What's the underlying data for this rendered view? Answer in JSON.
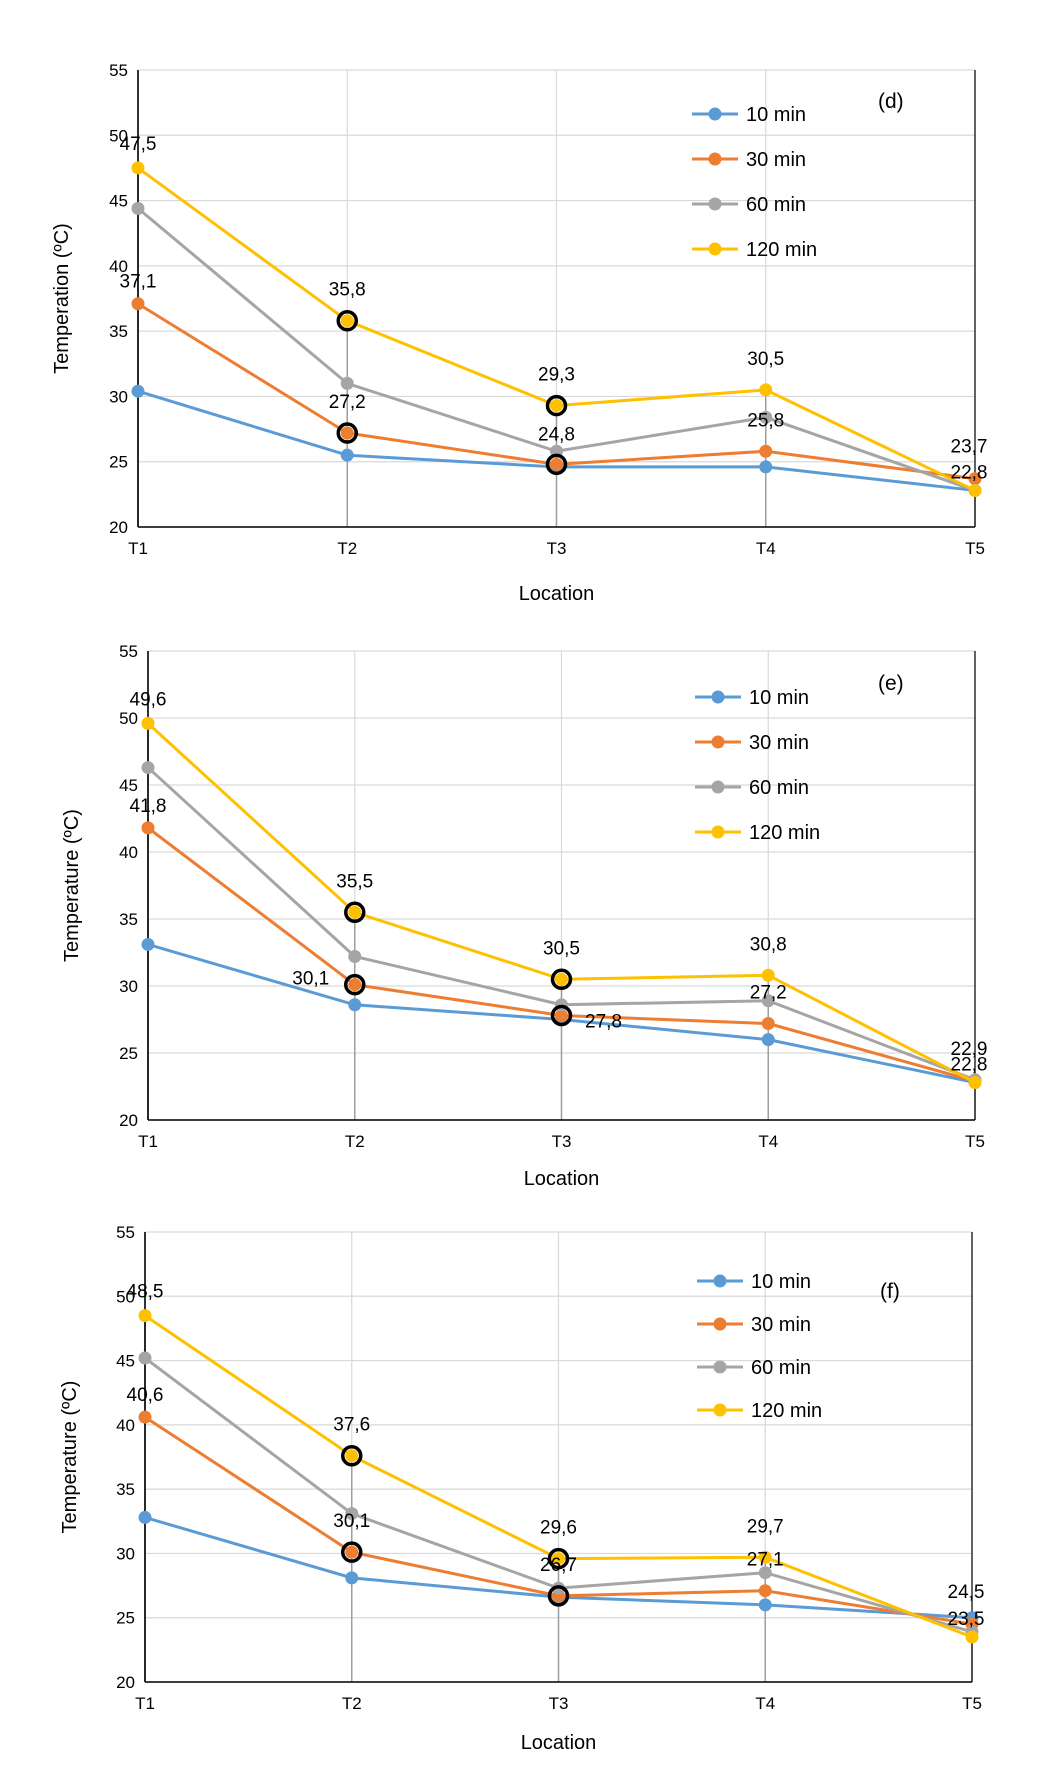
{
  "chart_data": [
    {
      "type": "line",
      "panel_label": "(d)",
      "xlabel": "Location",
      "ylabel": "Temperation (ºC)",
      "categories": [
        "T1",
        "T2",
        "T3",
        "T4",
        "T5"
      ],
      "ylim": [
        20,
        55
      ],
      "yticks": [
        "20",
        "25",
        "30",
        "35",
        "40",
        "45",
        "50",
        "55"
      ],
      "grid": true,
      "legend_position": "top-right",
      "series": [
        {
          "name": "10 min",
          "color": "#5b9bd5",
          "values": [
            30.4,
            25.5,
            24.6,
            24.6,
            22.8
          ]
        },
        {
          "name": "30 min",
          "color": "#ed7d31",
          "values": [
            37.1,
            27.2,
            24.8,
            25.8,
            23.7
          ]
        },
        {
          "name": "60 min",
          "color": "#a5a5a5",
          "values": [
            44.4,
            31.0,
            25.8,
            28.4,
            22.8
          ]
        },
        {
          "name": "120 min",
          "color": "#ffc000",
          "values": [
            47.5,
            35.8,
            29.3,
            30.5,
            22.8
          ]
        }
      ],
      "data_labels": [
        {
          "text": "47,5",
          "x": "T1",
          "y": 47.5
        },
        {
          "text": "37,1",
          "x": "T1",
          "y": 37.1
        },
        {
          "text": "35,8",
          "x": "T2",
          "y": 35.8
        },
        {
          "text": "27,2",
          "x": "T2",
          "y": 27.2
        },
        {
          "text": "29,3",
          "x": "T3",
          "y": 29.3
        },
        {
          "text": "24,8",
          "x": "T3",
          "y": 24.8
        },
        {
          "text": "30,5",
          "x": "T4",
          "y": 30.5
        },
        {
          "text": "25,8",
          "x": "T4",
          "y": 25.8
        },
        {
          "text": "23,7",
          "x": "T5",
          "y": 23.7
        },
        {
          "text": "22,8",
          "x": "T5",
          "y": 22.8
        }
      ],
      "highlighted_points": [
        {
          "x": "T2",
          "y": 35.8
        },
        {
          "x": "T3",
          "y": 29.3
        },
        {
          "x": "T2",
          "y": 27.2
        },
        {
          "x": "T3",
          "y": 24.8
        }
      ]
    },
    {
      "type": "line",
      "panel_label": "(e)",
      "xlabel": "Location",
      "ylabel": "Temperature (ºC)",
      "categories": [
        "T1",
        "T2",
        "T3",
        "T4",
        "T5"
      ],
      "ylim": [
        20,
        55
      ],
      "yticks": [
        "20",
        "25",
        "30",
        "35",
        "40",
        "45",
        "50",
        "55"
      ],
      "grid": true,
      "legend_position": "top-right",
      "series": [
        {
          "name": "10 min",
          "color": "#5b9bd5",
          "values": [
            33.1,
            28.6,
            27.5,
            26.0,
            22.8
          ]
        },
        {
          "name": "30 min",
          "color": "#ed7d31",
          "values": [
            41.8,
            30.1,
            27.8,
            27.2,
            22.9
          ]
        },
        {
          "name": "60 min",
          "color": "#a5a5a5",
          "values": [
            46.3,
            32.2,
            28.6,
            28.9,
            23.0
          ]
        },
        {
          "name": "120 min",
          "color": "#ffc000",
          "values": [
            49.6,
            35.5,
            30.5,
            30.8,
            22.8
          ]
        }
      ],
      "data_labels": [
        {
          "text": "49,6",
          "x": "T1",
          "y": 49.6
        },
        {
          "text": "41,8",
          "x": "T1",
          "y": 41.8
        },
        {
          "text": "35,5",
          "x": "T2",
          "y": 35.5
        },
        {
          "text": "30,1",
          "x": "T2",
          "y": 30.1
        },
        {
          "text": "30,5",
          "x": "T3",
          "y": 30.5
        },
        {
          "text": "27,8",
          "x": "T3",
          "y": 27.8
        },
        {
          "text": "30,8",
          "x": "T4",
          "y": 30.8
        },
        {
          "text": "27,2",
          "x": "T4",
          "y": 27.2
        },
        {
          "text": "22,9",
          "x": "T5",
          "y": 22.9
        },
        {
          "text": "22,8",
          "x": "T5",
          "y": 22.8
        }
      ],
      "highlighted_points": [
        {
          "x": "T2",
          "y": 35.5
        },
        {
          "x": "T3",
          "y": 30.5
        },
        {
          "x": "T2",
          "y": 30.1
        },
        {
          "x": "T3",
          "y": 27.8
        }
      ]
    },
    {
      "type": "line",
      "panel_label": "(f)",
      "xlabel": "Location",
      "ylabel": "Temperature (ºC)",
      "categories": [
        "T1",
        "T2",
        "T3",
        "T4",
        "T5"
      ],
      "ylim": [
        20,
        55
      ],
      "yticks": [
        "20",
        "25",
        "30",
        "35",
        "40",
        "45",
        "50",
        "55"
      ],
      "grid": true,
      "legend_position": "top-right",
      "series": [
        {
          "name": "10 min",
          "color": "#5b9bd5",
          "values": [
            32.8,
            28.1,
            26.6,
            26.0,
            25.0
          ]
        },
        {
          "name": "30 min",
          "color": "#ed7d31",
          "values": [
            40.6,
            30.1,
            26.7,
            27.1,
            24.5
          ]
        },
        {
          "name": "60 min",
          "color": "#a5a5a5",
          "values": [
            45.2,
            33.1,
            27.3,
            28.5,
            23.9
          ]
        },
        {
          "name": "120 min",
          "color": "#ffc000",
          "values": [
            48.5,
            37.6,
            29.6,
            29.7,
            23.5
          ]
        }
      ],
      "data_labels": [
        {
          "text": "48,5",
          "x": "T1",
          "y": 48.5
        },
        {
          "text": "40,6",
          "x": "T1",
          "y": 40.6
        },
        {
          "text": "37,6",
          "x": "T2",
          "y": 37.6
        },
        {
          "text": "30,1",
          "x": "T2",
          "y": 30.1
        },
        {
          "text": "29,6",
          "x": "T3",
          "y": 29.6
        },
        {
          "text": "26,7",
          "x": "T3",
          "y": 26.7
        },
        {
          "text": "29,7",
          "x": "T4",
          "y": 29.7
        },
        {
          "text": "27,1",
          "x": "T4",
          "y": 27.1
        },
        {
          "text": "24,5",
          "x": "T5",
          "y": 24.5
        },
        {
          "text": "23,5",
          "x": "T5",
          "y": 23.5
        }
      ],
      "highlighted_points": [
        {
          "x": "T2",
          "y": 37.6
        },
        {
          "x": "T3",
          "y": 29.6
        },
        {
          "x": "T2",
          "y": 30.1
        },
        {
          "x": "T3",
          "y": 26.7
        }
      ]
    }
  ]
}
